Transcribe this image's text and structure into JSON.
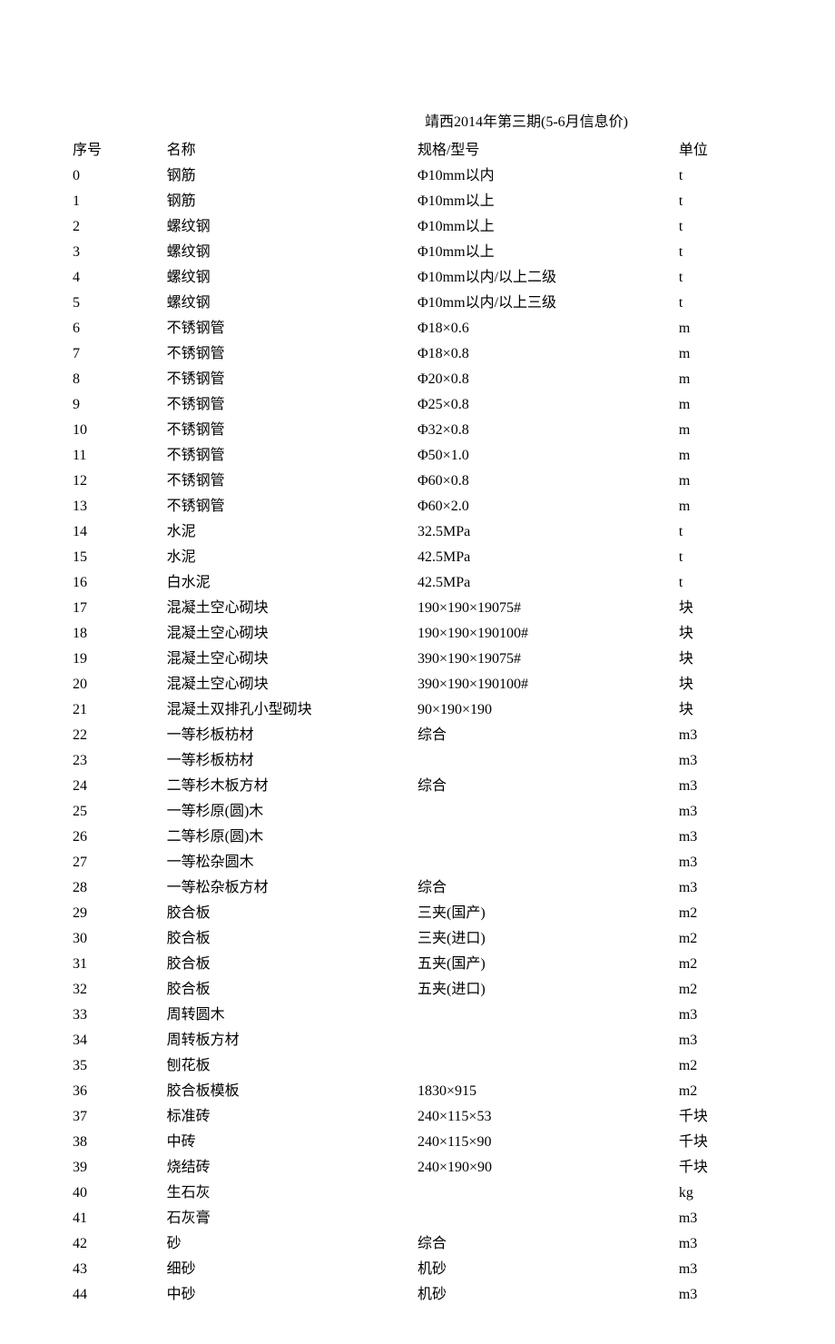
{
  "title": "靖西2014年第三期(5-6月信息价)",
  "columns": [
    "序号",
    "名称",
    "规格/型号",
    "单位"
  ],
  "rows": [
    [
      "0",
      "钢筋",
      "Φ10mm以内",
      "t"
    ],
    [
      "1",
      "钢筋",
      "Φ10mm以上",
      "t"
    ],
    [
      "2",
      "螺纹钢",
      "Φ10mm以上",
      "t"
    ],
    [
      "3",
      "螺纹钢",
      "Φ10mm以上",
      "t"
    ],
    [
      "4",
      "螺纹钢",
      "Φ10mm以内/以上二级",
      "t"
    ],
    [
      "5",
      "螺纹钢",
      "Φ10mm以内/以上三级",
      "t"
    ],
    [
      "6",
      "不锈钢管",
      "Φ18×0.6",
      "m"
    ],
    [
      "7",
      "不锈钢管",
      "Φ18×0.8",
      "m"
    ],
    [
      "8",
      "不锈钢管",
      "Φ20×0.8",
      "m"
    ],
    [
      "9",
      "不锈钢管",
      "Φ25×0.8",
      "m"
    ],
    [
      "10",
      "不锈钢管",
      "Φ32×0.8",
      "m"
    ],
    [
      "11",
      "不锈钢管",
      "Φ50×1.0",
      "m"
    ],
    [
      "12",
      "不锈钢管",
      "Φ60×0.8",
      "m"
    ],
    [
      "13",
      "不锈钢管",
      "Φ60×2.0",
      "m"
    ],
    [
      "14",
      "水泥",
      "32.5MPa",
      "t"
    ],
    [
      "15",
      "水泥",
      "42.5MPa",
      "t"
    ],
    [
      "16",
      "白水泥",
      "42.5MPa",
      "t"
    ],
    [
      "17",
      "混凝土空心砌块",
      "190×190×19075#",
      "块"
    ],
    [
      "18",
      "混凝土空心砌块",
      "190×190×190100#",
      "块"
    ],
    [
      "19",
      "混凝土空心砌块",
      "390×190×19075#",
      "块"
    ],
    [
      "20",
      "混凝土空心砌块",
      "390×190×190100#",
      "块"
    ],
    [
      "21",
      "混凝土双排孔小型砌块",
      "90×190×190",
      "块"
    ],
    [
      "22",
      "一等杉板枋材",
      "综合",
      "m3"
    ],
    [
      "23",
      "一等杉板枋材",
      "",
      "m3"
    ],
    [
      "24",
      "二等杉木板方材",
      "综合",
      "m3"
    ],
    [
      "25",
      "一等杉原(圆)木",
      "",
      "m3"
    ],
    [
      "26",
      "二等杉原(圆)木",
      "",
      "m3"
    ],
    [
      "27",
      "一等松杂圆木",
      "",
      "m3"
    ],
    [
      "28",
      "一等松杂板方材",
      "综合",
      "m3"
    ],
    [
      "29",
      "胶合板",
      "三夹(国产)",
      "m2"
    ],
    [
      "30",
      "胶合板",
      "三夹(进口)",
      "m2"
    ],
    [
      "31",
      "胶合板",
      "五夹(国产)",
      "m2"
    ],
    [
      "32",
      "胶合板",
      "五夹(进口)",
      "m2"
    ],
    [
      "33",
      "周转圆木",
      "",
      "m3"
    ],
    [
      "34",
      "周转板方材",
      "",
      "m3"
    ],
    [
      "35",
      "刨花板",
      "",
      "m2"
    ],
    [
      "36",
      "胶合板模板",
      "1830×915",
      "m2"
    ],
    [
      "37",
      "标准砖",
      "240×115×53",
      "千块"
    ],
    [
      "38",
      "中砖",
      "240×115×90",
      "千块"
    ],
    [
      "39",
      "烧结砖",
      "240×190×90",
      "千块"
    ],
    [
      "40",
      "生石灰",
      "",
      "kg"
    ],
    [
      "41",
      "石灰膏",
      "",
      "m3"
    ],
    [
      "42",
      "砂",
      "综合",
      "m3"
    ],
    [
      "43",
      "细砂",
      "机砂",
      "m3"
    ],
    [
      "44",
      "中砂",
      "机砂",
      "m3"
    ]
  ]
}
